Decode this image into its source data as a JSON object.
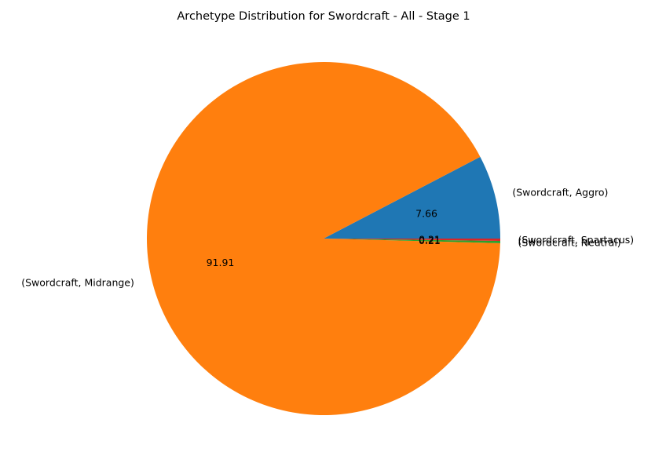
{
  "chart_data": {
    "type": "pie",
    "title": "Archetype Distribution for Swordcraft - All - Stage 1",
    "start_angle_deg": 0,
    "direction": "counterclockwise",
    "slices": [
      {
        "label": "(Swordcraft, Aggro)",
        "value": 7.66,
        "pct_label": "7.66",
        "color": "#1f77b4"
      },
      {
        "label": "(Swordcraft, Midrange)",
        "value": 91.91,
        "pct_label": "91.91",
        "color": "#ff7f0e"
      },
      {
        "label": "(Swordcraft, Neutral)",
        "value": 0.21,
        "pct_label": "0.21",
        "color": "#2ca02c"
      },
      {
        "label": "(Swordcraft, Spartacus)",
        "value": 0.21,
        "pct_label": "0.21",
        "color": "#d62728"
      }
    ]
  }
}
